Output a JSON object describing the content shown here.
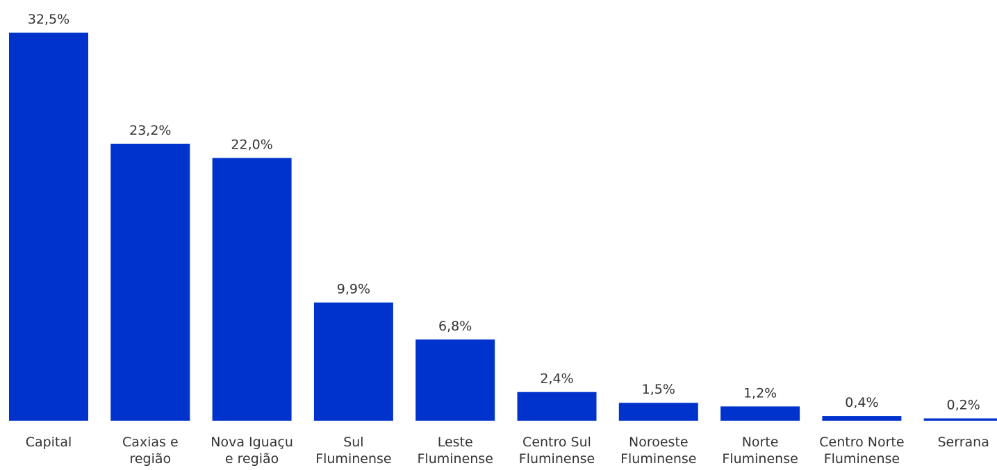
{
  "chart_data": {
    "type": "bar",
    "categories": [
      [
        "Capital"
      ],
      [
        "Caxias e",
        "região"
      ],
      [
        "Nova Iguaçu",
        "e região"
      ],
      [
        "Sul",
        "Fluminense"
      ],
      [
        "Leste",
        "Fluminense"
      ],
      [
        "Centro Sul",
        "Fluminense"
      ],
      [
        "Noroeste",
        "Fluminense"
      ],
      [
        "Norte",
        "Fluminense"
      ],
      [
        "Centro Norte",
        "Fluminense"
      ],
      [
        "Serrana"
      ]
    ],
    "values": [
      32.5,
      23.2,
      22.0,
      9.9,
      6.8,
      2.4,
      1.5,
      1.2,
      0.4,
      0.2
    ],
    "value_labels": [
      "32,5%",
      "23,2%",
      "22,0%",
      "9,9%",
      "6,8%",
      "2,4%",
      "1,5%",
      "1,2%",
      "0,4%",
      "0,2%"
    ],
    "bar_color": "#0033cc",
    "ylim": [
      0,
      32.5
    ],
    "grid": false,
    "axes_visible": false
  }
}
